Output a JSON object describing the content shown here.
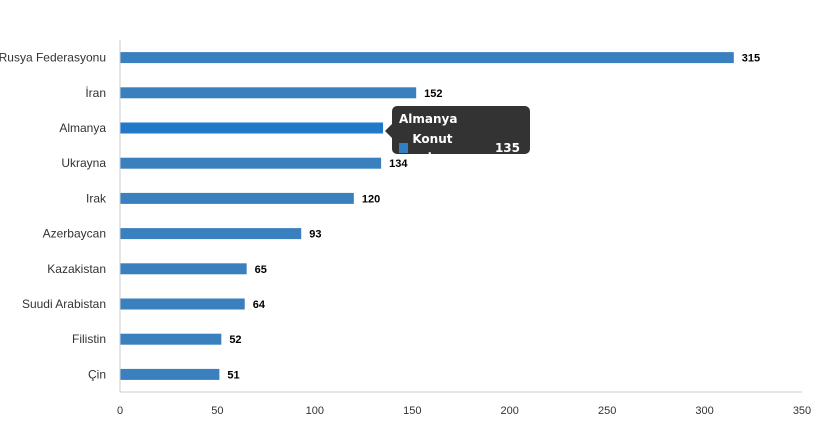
{
  "chart_data": {
    "type": "bar",
    "orientation": "horizontal",
    "categories": [
      "Rusya Federasyonu",
      "İran",
      "Almanya",
      "Ukrayna",
      "Irak",
      "Azerbaycan",
      "Kazakistan",
      "Suudi Arabistan",
      "Filistin",
      "Çin"
    ],
    "series": [
      {
        "name": "Konut satışı",
        "values": [
          315,
          152,
          135,
          134,
          120,
          93,
          65,
          64,
          52,
          51
        ]
      }
    ],
    "x_ticks": [
      0,
      50,
      100,
      150,
      200,
      250,
      300,
      350
    ],
    "xlim": [
      0,
      350
    ],
    "grid": false,
    "colors": {
      "bar": "#3a7fbe",
      "bar_highlight": "#1f78c8"
    },
    "highlighted_category": "Almanya"
  },
  "tooltip": {
    "title": "Almanya",
    "series_label": "Konut satışı:",
    "value": "135"
  }
}
